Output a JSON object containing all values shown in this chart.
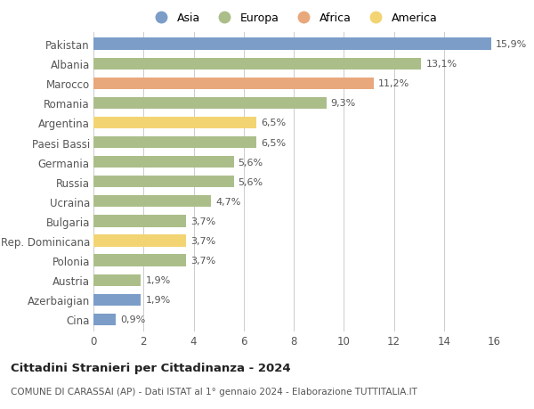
{
  "countries": [
    "Pakistan",
    "Albania",
    "Marocco",
    "Romania",
    "Argentina",
    "Paesi Bassi",
    "Germania",
    "Russia",
    "Ucraina",
    "Bulgaria",
    "Rep. Dominicana",
    "Polonia",
    "Austria",
    "Azerbaigian",
    "Cina"
  ],
  "values": [
    15.9,
    13.1,
    11.2,
    9.3,
    6.5,
    6.5,
    5.6,
    5.6,
    4.7,
    3.7,
    3.7,
    3.7,
    1.9,
    1.9,
    0.9
  ],
  "labels": [
    "15,9%",
    "13,1%",
    "11,2%",
    "9,3%",
    "6,5%",
    "6,5%",
    "5,6%",
    "5,6%",
    "4,7%",
    "3,7%",
    "3,7%",
    "3,7%",
    "1,9%",
    "1,9%",
    "0,9%"
  ],
  "continents": [
    "Asia",
    "Europa",
    "Africa",
    "Europa",
    "America",
    "Europa",
    "Europa",
    "Europa",
    "Europa",
    "Europa",
    "America",
    "Europa",
    "Europa",
    "Asia",
    "Asia"
  ],
  "continent_colors": {
    "Asia": "#7b9dc8",
    "Europa": "#abbe8a",
    "Africa": "#e8a87c",
    "America": "#f2d472"
  },
  "legend_order": [
    "Asia",
    "Europa",
    "Africa",
    "America"
  ],
  "title": "Cittadini Stranieri per Cittadinanza - 2024",
  "subtitle": "COMUNE DI CARASSAI (AP) - Dati ISTAT al 1° gennaio 2024 - Elaborazione TUTTITALIA.IT",
  "xlim": [
    0,
    16
  ],
  "xticks": [
    0,
    2,
    4,
    6,
    8,
    10,
    12,
    14,
    16
  ],
  "bg_color": "#ffffff",
  "grid_color": "#cccccc",
  "bar_height": 0.6
}
